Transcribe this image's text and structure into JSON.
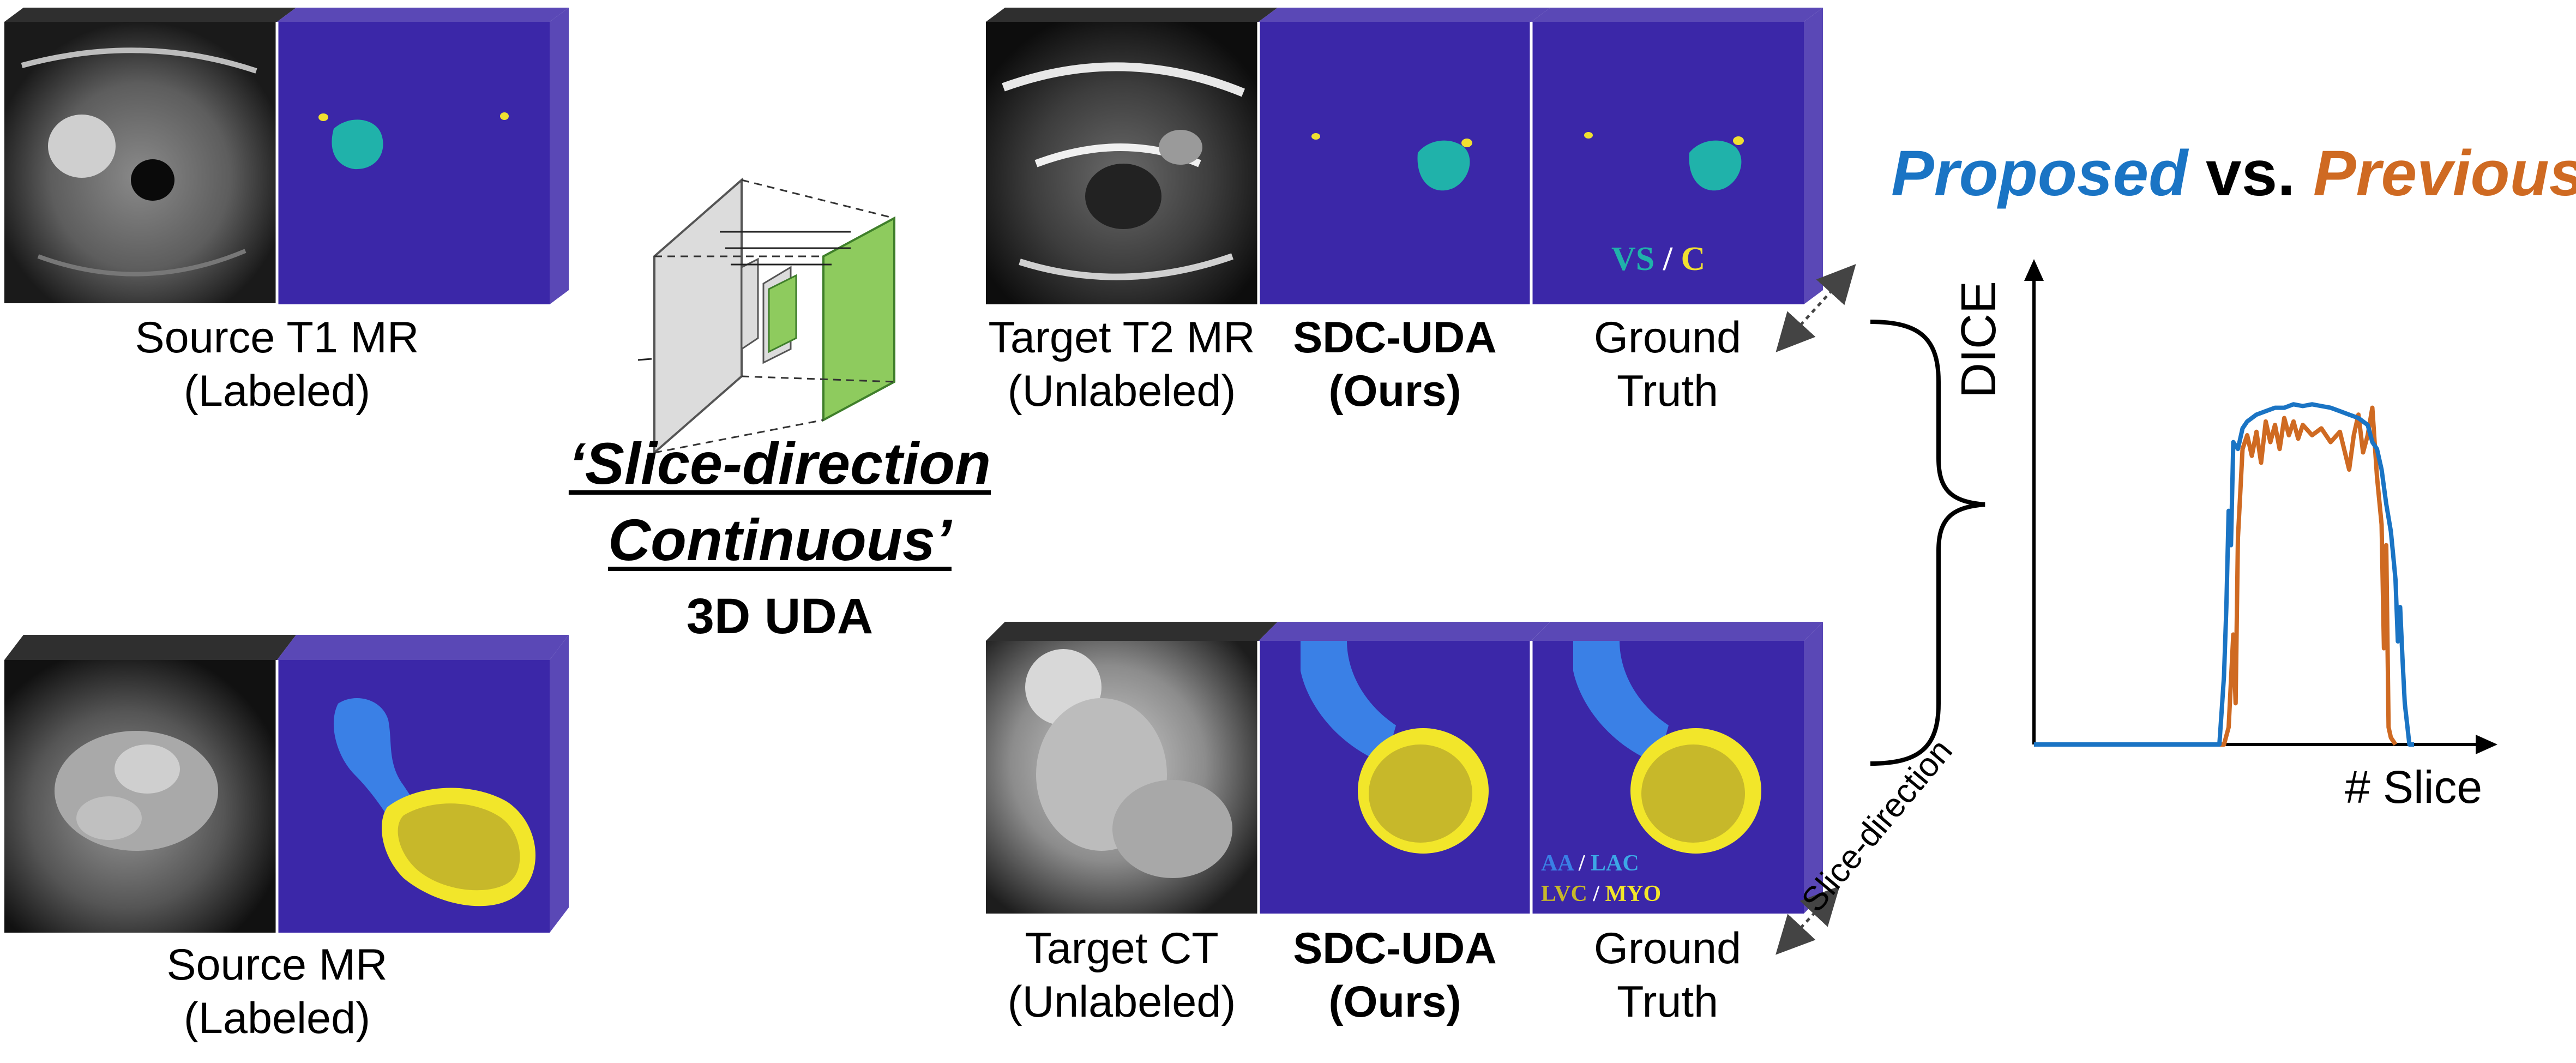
{
  "colors": {
    "panel_front": "#3b27a8",
    "panel_side": "#5a48b6",
    "image_strip": "#2f2f2f",
    "vs": "#20b2aa",
    "c": "#f0e030",
    "aa": "#3a80e6",
    "lac": "#3ca8e6",
    "lvc": "#c7b82a",
    "myo": "#f2e62a",
    "proposed": "#1a74c4",
    "previous": "#cf6a22"
  },
  "source_t1": {
    "caption_line1": "Source T1 MR",
    "caption_line2": "(Labeled)"
  },
  "source_mr": {
    "caption_line1": "Source MR",
    "caption_line2": "(Labeled)"
  },
  "target_t2": {
    "caption1_line1": "Target T2 MR",
    "caption1_line2": "(Unlabeled)",
    "caption2_line1": "SDC-UDA",
    "caption2_line2": "(Ours)",
    "caption3_line1": "Ground",
    "caption3_line2": "Truth",
    "legend_vs": "VS",
    "legend_sep": "/",
    "legend_c": "C"
  },
  "target_ct": {
    "caption1_line1": "Target CT",
    "caption1_line2": "(Unlabeled)",
    "caption2_line1": "SDC-UDA",
    "caption2_line2": "(Ours)",
    "caption3_line1": "Ground",
    "caption3_line2": "Truth",
    "legend_aa": "AA",
    "legend_sep": "/",
    "legend_lac": "LAC",
    "legend_lvc": "LVC",
    "legend_myo": "MYO"
  },
  "method": {
    "line1": "‘Slice-direction",
    "line2": "Continuous’",
    "line3": "3D UDA"
  },
  "slice_direction_label": "Slice-direction",
  "comparison": {
    "proposed": "Proposed",
    "vs": "vs.",
    "previous": "Previous"
  },
  "chart_data": {
    "type": "line",
    "ylabel": "DICE",
    "xlabel": "# Slice",
    "xlim": [
      0,
      100
    ],
    "ylim": [
      0,
      1
    ],
    "series": [
      {
        "name": "Proposed",
        "color": "#1a74c4",
        "x": [
          0,
          40,
          40.5,
          41,
          41.5,
          42,
          42.5,
          43,
          44,
          45,
          46,
          48,
          50,
          52,
          54,
          56,
          58,
          60,
          62,
          64,
          66,
          68,
          70,
          72,
          73,
          74,
          75,
          76,
          77,
          77.5,
          78,
          78.5,
          79,
          79.5,
          80,
          81,
          82
        ],
        "y": [
          0,
          0,
          0.1,
          0.2,
          0.4,
          0.68,
          0.58,
          0.88,
          0.86,
          0.92,
          0.94,
          0.96,
          0.97,
          0.98,
          0.98,
          0.99,
          0.985,
          0.99,
          0.985,
          0.98,
          0.97,
          0.96,
          0.95,
          0.93,
          0.88,
          0.86,
          0.8,
          0.7,
          0.62,
          0.55,
          0.48,
          0.3,
          0.4,
          0.25,
          0.12,
          0.0,
          0.0
        ]
      },
      {
        "name": "Previous",
        "color": "#cf6a22",
        "x": [
          0,
          40,
          41,
          42,
          43,
          43.5,
          44,
          45,
          46,
          47,
          48,
          49,
          50,
          51,
          52,
          53,
          54,
          55,
          56,
          57,
          58,
          60,
          62,
          64,
          66,
          68,
          69,
          70,
          71,
          72,
          73,
          74,
          75,
          75.5,
          76,
          76.5,
          77,
          78
        ],
        "y": [
          0,
          0,
          0.0,
          0.05,
          0.32,
          0.12,
          0.6,
          0.86,
          0.9,
          0.84,
          0.91,
          0.82,
          0.94,
          0.88,
          0.93,
          0.86,
          0.95,
          0.9,
          0.94,
          0.89,
          0.93,
          0.9,
          0.92,
          0.88,
          0.91,
          0.8,
          0.9,
          0.96,
          0.85,
          0.9,
          0.98,
          0.78,
          0.64,
          0.28,
          0.58,
          0.05,
          0.02,
          0.0
        ]
      }
    ]
  }
}
